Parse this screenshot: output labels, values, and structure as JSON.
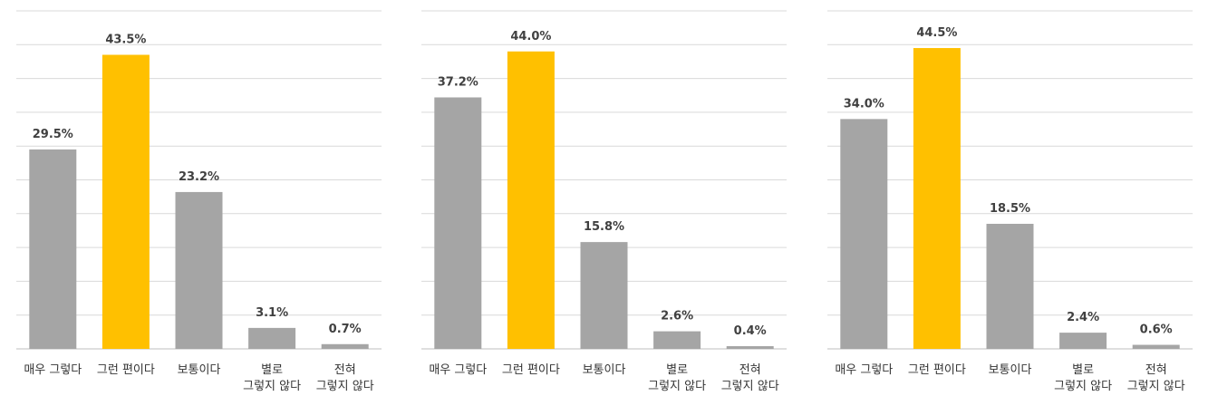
{
  "chart_data": [
    {
      "type": "bar",
      "categories": [
        "매우 그렇다",
        "그런 편이다",
        "보통이다",
        "별로\n그렇지 않다",
        "전혀\n그렇지 않다"
      ],
      "values": [
        29.5,
        43.5,
        23.2,
        3.1,
        0.7
      ],
      "value_labels": [
        "29.5%",
        "43.5%",
        "23.2%",
        "3.1%",
        "0.7%"
      ],
      "colors": [
        "#a5a5a5",
        "#ffc000",
        "#a5a5a5",
        "#a5a5a5",
        "#a5a5a5"
      ],
      "ylim": [
        0,
        50
      ],
      "yticks": [
        0,
        5,
        10,
        15,
        20,
        25,
        30,
        35,
        40,
        45,
        50
      ],
      "grid": true
    },
    {
      "type": "bar",
      "categories": [
        "매우 그렇다",
        "그런 편이다",
        "보통이다",
        "별로\n그렇지 않다",
        "전혀\n그렇지 않다"
      ],
      "values": [
        37.2,
        44.0,
        15.8,
        2.6,
        0.4
      ],
      "value_labels": [
        "37.2%",
        "44.0%",
        "15.8%",
        "2.6%",
        "0.4%"
      ],
      "colors": [
        "#a5a5a5",
        "#ffc000",
        "#a5a5a5",
        "#a5a5a5",
        "#a5a5a5"
      ],
      "ylim": [
        0,
        50
      ],
      "yticks": [
        0,
        5,
        10,
        15,
        20,
        25,
        30,
        35,
        40,
        45,
        50
      ],
      "grid": true
    },
    {
      "type": "bar",
      "categories": [
        "매우 그렇다",
        "그런 편이다",
        "보통이다",
        "별로\n그렇지 않다",
        "전혀\n그렇지 않다"
      ],
      "values": [
        34.0,
        44.5,
        18.5,
        2.4,
        0.6
      ],
      "value_labels": [
        "34.0%",
        "44.5%",
        "18.5%",
        "2.4%",
        "0.6%"
      ],
      "colors": [
        "#a5a5a5",
        "#ffc000",
        "#a5a5a5",
        "#a5a5a5",
        "#a5a5a5"
      ],
      "ylim": [
        0,
        50
      ],
      "yticks": [
        0,
        5,
        10,
        15,
        20,
        25,
        30,
        35,
        40,
        45,
        50
      ],
      "grid": true
    }
  ]
}
